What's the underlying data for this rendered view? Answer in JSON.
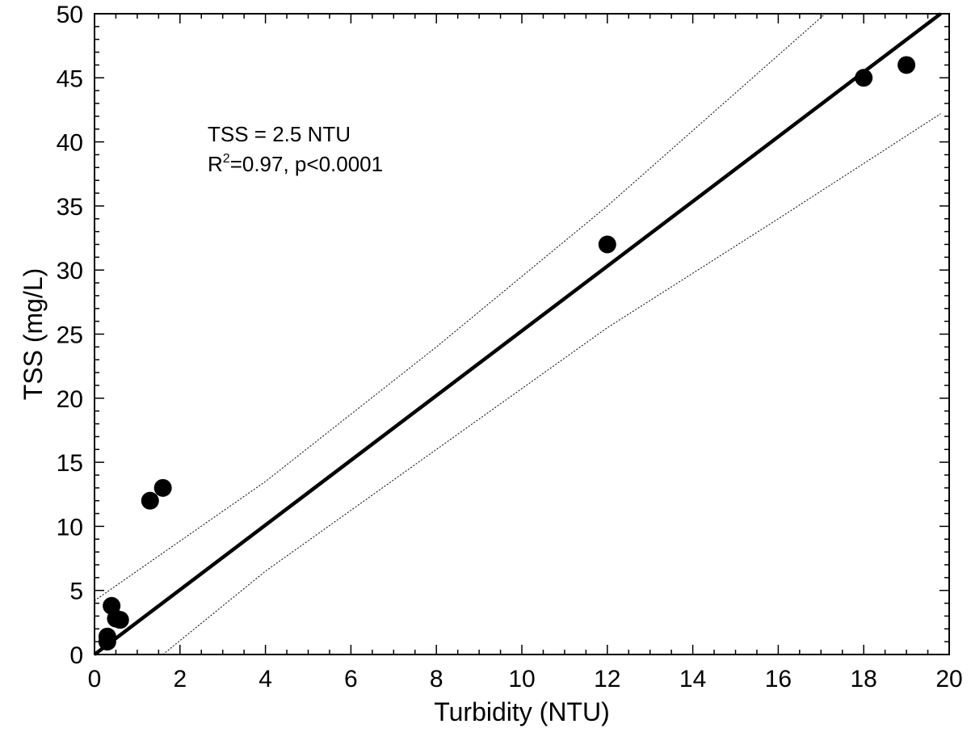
{
  "chart_data": {
    "type": "scatter",
    "xlabel": "Turbidity (NTU)",
    "ylabel": "TSS (mg/L)",
    "xlim": [
      0,
      20
    ],
    "ylim": [
      0,
      50
    ],
    "x_ticks": [
      "0",
      "2",
      "4",
      "6",
      "8",
      "10",
      "12",
      "14",
      "16",
      "18",
      "20"
    ],
    "y_ticks": [
      "0",
      "5",
      "10",
      "15",
      "20",
      "25",
      "30",
      "35",
      "40",
      "45",
      "50"
    ],
    "grid": false,
    "points": {
      "x": [
        0.3,
        0.3,
        0.4,
        0.5,
        0.6,
        1.3,
        1.6,
        12.0,
        18.0,
        19.0
      ],
      "y": [
        1.0,
        1.4,
        3.8,
        2.8,
        2.7,
        12.0,
        13.0,
        32.0,
        45.0,
        46.0
      ]
    },
    "fit_line": {
      "x": [
        0,
        19.8
      ],
      "y": [
        0,
        50
      ]
    },
    "confidence_upper": {
      "x": [
        0,
        4,
        8,
        12,
        17.1
      ],
      "y": [
        4.2,
        13.5,
        24.0,
        35.0,
        50.0
      ]
    },
    "confidence_lower": {
      "x": [
        1.6,
        4,
        8,
        12,
        16,
        19.8
      ],
      "y": [
        0,
        6.5,
        16.0,
        25.5,
        34.0,
        42.2
      ]
    },
    "annotation": {
      "line1": "TSS = 2.5 NTU",
      "line2_prefix": "R",
      "line2_sup": "2",
      "line2_suffix": "=0.97, p<0.0001"
    }
  }
}
